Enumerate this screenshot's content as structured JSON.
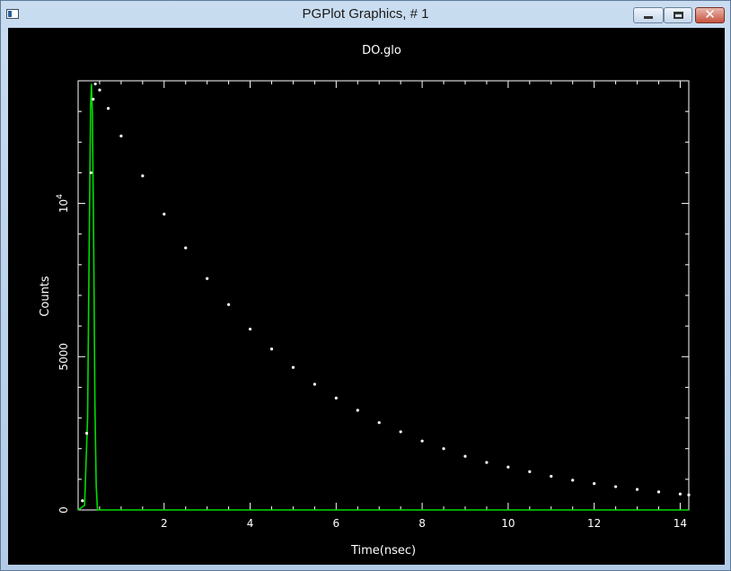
{
  "window": {
    "title": "PGPlot Graphics, # 1",
    "icons": {
      "app": "pgplot-app-icon",
      "minimize": "minimize-icon",
      "maximize": "maximize-icon",
      "close": "close-icon"
    },
    "close_glyph": "✕"
  },
  "colors": {
    "background": "#000000",
    "axes": "#ffffff",
    "data_points": "#ffffff",
    "fit_line": "#00dd00"
  },
  "chart_data": {
    "type": "scatter",
    "title": "DO.glo",
    "xlabel": "Time(nsec)",
    "ylabel": "Counts",
    "xlim": [
      0,
      14.2
    ],
    "ylim": [
      0,
      14000
    ],
    "x_ticks": [
      2,
      4,
      6,
      8,
      10,
      12,
      14
    ],
    "y_ticks": [
      {
        "value": 0,
        "label": "0"
      },
      {
        "value": 5000,
        "label": "5000"
      },
      {
        "value": 10000,
        "label": "10^4"
      }
    ],
    "series": [
      {
        "kind": "points",
        "x": [
          0.1,
          0.2,
          0.3,
          0.35,
          0.4,
          0.5,
          0.7,
          1.0,
          1.5,
          2.0,
          2.5,
          3.0,
          3.5,
          4.0,
          4.5,
          5.0,
          5.5,
          6.0,
          6.5,
          7.0,
          7.5,
          8.0,
          8.5,
          9.0,
          9.5,
          10.0,
          10.5,
          11.0,
          11.5,
          12.0,
          12.5,
          13.0,
          13.5,
          14.0,
          14.2
        ],
        "y": [
          300,
          2500,
          11000,
          13400,
          13900,
          13700,
          13100,
          12200,
          10900,
          9650,
          8550,
          7550,
          6700,
          5900,
          5250,
          4650,
          4100,
          3650,
          3250,
          2850,
          2550,
          2250,
          2000,
          1750,
          1550,
          1400,
          1250,
          1100,
          970,
          860,
          760,
          670,
          590,
          520,
          490
        ]
      },
      {
        "kind": "line",
        "x": [
          0.0,
          0.15,
          0.22,
          0.26,
          0.29,
          0.31,
          0.33,
          0.36,
          0.39,
          0.42,
          0.45,
          0.5,
          14.2
        ],
        "y": [
          0,
          150,
          3000,
          9000,
          13200,
          13900,
          13000,
          9000,
          3500,
          800,
          0,
          0,
          0
        ]
      }
    ]
  }
}
